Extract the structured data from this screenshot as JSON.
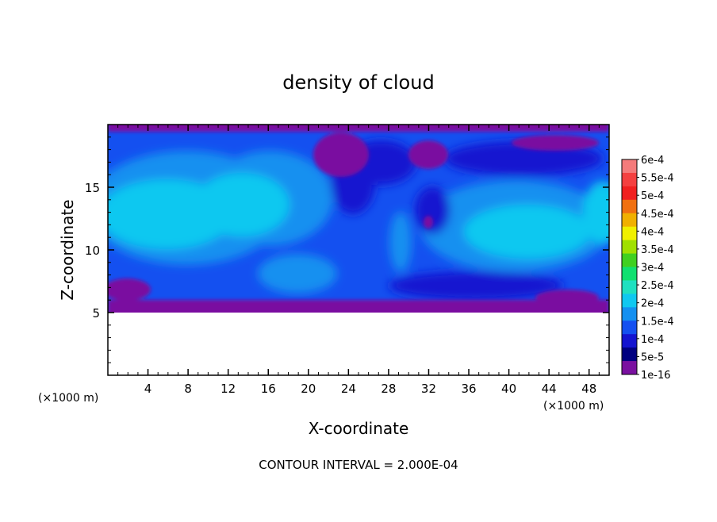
{
  "chart_data": {
    "type": "heatmap",
    "title": "density of cloud",
    "xlabel": "X-coordinate",
    "ylabel": "Z-coordinate",
    "x_unit": "(×1000 m)",
    "y_unit": "(×1000 m)",
    "xlim": [
      0,
      50
    ],
    "ylim": [
      0,
      20
    ],
    "x_ticks": [
      4,
      8,
      12,
      16,
      20,
      24,
      28,
      32,
      36,
      40,
      44,
      48
    ],
    "y_ticks": [
      5,
      10,
      15
    ],
    "cloud_base_z": 5,
    "cloud_top_z": 20,
    "colorbar": {
      "labels": [
        "6e-4",
        "5.5e-4",
        "5e-4",
        "4.5e-4",
        "4e-4",
        "3.5e-4",
        "3e-4",
        "2.5e-4",
        "2e-4",
        "1.5e-4",
        "1e-4",
        "5e-5",
        "1e-16"
      ],
      "colors": [
        "#f47b7b",
        "#f44040",
        "#f02020",
        "#f07010",
        "#f0b000",
        "#f0f000",
        "#a0e000",
        "#40d020",
        "#10e070",
        "#20e0c0",
        "#10c8f0",
        "#1490f0",
        "#1450f0",
        "#1414d0",
        "#000080",
        "#7a10a0"
      ]
    },
    "footer": "CONTOUR INTERVAL = 2.000E-04"
  }
}
